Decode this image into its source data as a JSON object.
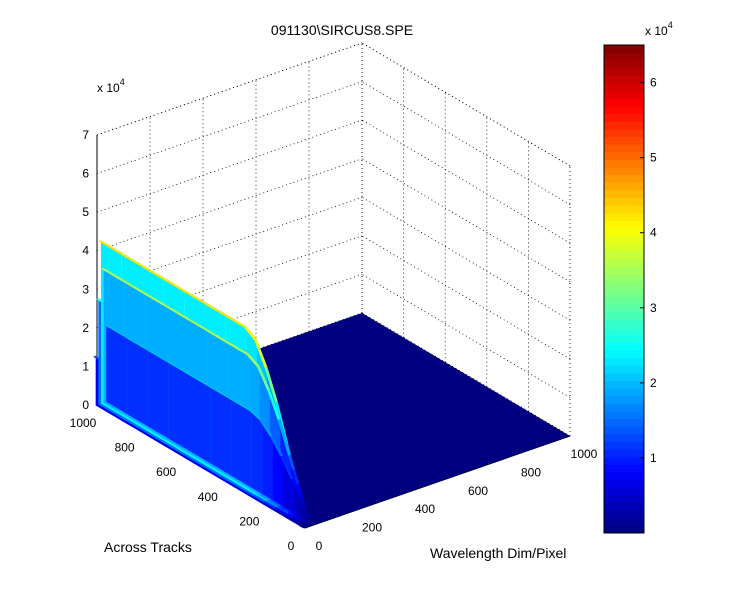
{
  "chart_data": {
    "type": "surface3d",
    "title": "091130\\SIRCUS8.SPE",
    "xlabel": "Wavelength Dim/Pixel",
    "ylabel": "Across Tracks",
    "zlabel": "",
    "x_ticks": [
      "0",
      "200",
      "400",
      "600",
      "800",
      "1000"
    ],
    "y_ticks": [
      "0",
      "200",
      "400",
      "600",
      "800",
      "1000"
    ],
    "z_ticks": [
      "0",
      "1",
      "2",
      "3",
      "4",
      "5",
      "6",
      "7"
    ],
    "z_exponent": "x 10",
    "z_exponent_power": "4",
    "xlim": [
      0,
      1000
    ],
    "ylim": [
      0,
      1000
    ],
    "zlim": [
      0,
      70000
    ],
    "grid": "on",
    "surface": {
      "baseline_value": 0,
      "peak_column_x_range": [
        -15,
        35
      ],
      "peak_profile": {
        "y": [
          0,
          20,
          40,
          60,
          80,
          100,
          150,
          200,
          250,
          300,
          400,
          500,
          600,
          700,
          800,
          900,
          1000
        ],
        "max_z": [
          2000,
          3000,
          8000,
          12000,
          16000,
          20000,
          30000,
          38000,
          44000,
          46000,
          46000,
          46000,
          46000,
          46000,
          46000,
          46000,
          46000
        ]
      }
    },
    "colorbar": {
      "colormap": "jet",
      "range": [
        0,
        65000
      ],
      "ticks": [
        "1",
        "2",
        "3",
        "4",
        "5",
        "6"
      ],
      "exponent": "x 10",
      "exponent_power": "4",
      "position": "right"
    }
  }
}
